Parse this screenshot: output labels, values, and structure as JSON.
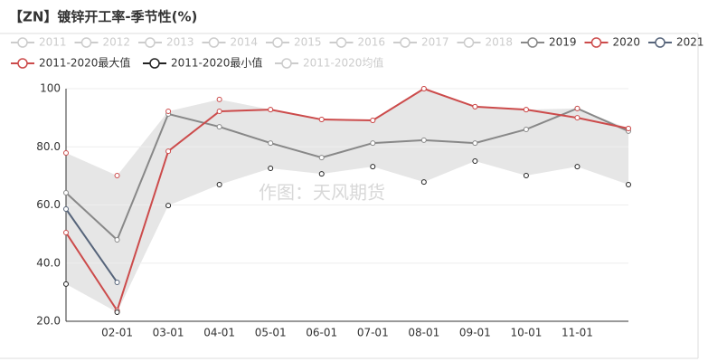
{
  "chart_data": {
    "type": "line",
    "title": "【ZN】镀锌开工率-季节性(%)",
    "watermark": "作图：天风期货",
    "categories": [
      null,
      "02-01",
      "03-01",
      "04-01",
      "05-01",
      "06-01",
      "07-01",
      "08-01",
      "09-01",
      "10-01",
      "11-01",
      null
    ],
    "ylim": [
      20,
      100
    ],
    "yticks": [
      {
        "value": 20,
        "label": "20.0"
      },
      {
        "value": 40,
        "label": "40.0"
      },
      {
        "value": 60,
        "label": "60.0"
      },
      {
        "value": 80,
        "label": "80.0"
      },
      100
    ],
    "grid": true,
    "band": true,
    "band_color": "#e6e6e6",
    "inactive_color": "#cccccc",
    "inactive_legend": [
      "2011",
      "2012",
      "2013",
      "2014",
      "2015",
      "2016",
      "2017",
      "2018",
      "2011-2020均值"
    ],
    "series": [
      {
        "name": "2019",
        "color": "#888888",
        "line": true,
        "values": [
          64.2,
          48,
          91.3,
          86.9,
          81.3,
          76.3,
          81.3,
          82.3,
          81.3,
          86,
          93.2,
          85.4
        ]
      },
      {
        "name": "2020",
        "color": "#cc4b4b",
        "line": true,
        "values": [
          50.5,
          23.7,
          78.5,
          92.2,
          92.8,
          89.4,
          89.1,
          100,
          93.8,
          92.8,
          90,
          86.3
        ]
      },
      {
        "name": "2021",
        "color": "#56647a",
        "line": true,
        "values": [
          58.6,
          33.4,
          null,
          null,
          null,
          null,
          null,
          null,
          null,
          null,
          null,
          null
        ]
      },
      {
        "name": "2011-2020最大值",
        "color": "#cc4b4b",
        "line": false,
        "values": [
          77.9,
          70.1,
          92.2,
          96.3,
          92.8,
          89.4,
          89.1,
          100,
          93.8,
          92.8,
          93.2,
          86.3
        ]
      },
      {
        "name": "2011-2020最小值",
        "color": "#222222",
        "line": false,
        "values": [
          32.8,
          23.1,
          59.8,
          67,
          72.6,
          70.7,
          73.2,
          67.9,
          75.1,
          70.1,
          73.2,
          67
        ]
      }
    ]
  }
}
